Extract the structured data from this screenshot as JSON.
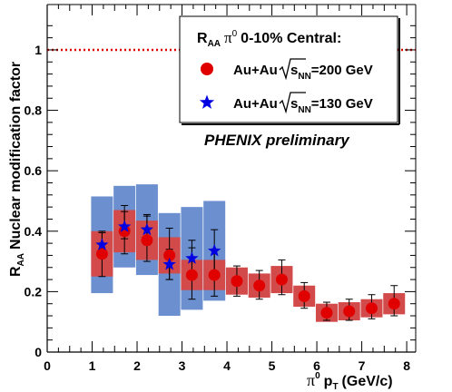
{
  "chart_data": {
    "type": "scatter",
    "xlabel_pre": "π",
    "xlabel_sup": "0",
    "xlabel_p": "p",
    "xlabel_sub": "T",
    "xlabel_post": "(GeV/c)",
    "ylabel_pre": "R",
    "ylabel_sub": "AA",
    "ylabel_post": "Nuclear modification factor",
    "annotation": "PHENIX preliminary",
    "xlim": [
      0,
      8.2
    ],
    "ylim": [
      0,
      1.15
    ],
    "x_ticks": [
      0,
      1,
      2,
      3,
      4,
      5,
      6,
      7,
      8
    ],
    "y_ticks": [
      0,
      0.2,
      0.4,
      0.6,
      0.8,
      1
    ],
    "reference_line": 1,
    "colors": {
      "s200": "#e00000",
      "s200_band": "#d24a4a",
      "s130": "#0000e0",
      "s130_band": "#6b8fcf",
      "reference": "#e00000"
    },
    "legend": {
      "title_pre": "R",
      "title_sub": "AA",
      "title_pi": "π",
      "title_sup": "0",
      "title_post": "0-10% Central:",
      "placement": "top-right"
    },
    "series": [
      {
        "name_pre": "Au+Au",
        "name_s": "s",
        "name_sub": "NN",
        "name_post": "=200 GeV",
        "marker": "circle",
        "x": [
          1.22,
          1.72,
          2.22,
          2.72,
          3.22,
          3.72,
          4.22,
          4.72,
          5.22,
          5.72,
          6.22,
          6.72,
          7.22,
          7.72
        ],
        "y": [
          0.325,
          0.4,
          0.37,
          0.32,
          0.255,
          0.255,
          0.235,
          0.22,
          0.24,
          0.185,
          0.13,
          0.135,
          0.145,
          0.16
        ],
        "err_lo": [
          0.075,
          0.075,
          0.07,
          0.08,
          0.08,
          0.07,
          0.05,
          0.045,
          0.05,
          0.04,
          0.025,
          0.03,
          0.035,
          0.04
        ],
        "err_hi": [
          0.075,
          0.085,
          0.08,
          0.09,
          0.09,
          0.08,
          0.05,
          0.05,
          0.065,
          0.045,
          0.035,
          0.04,
          0.045,
          0.06
        ],
        "band": [
          0.075,
          0.07,
          0.065,
          0.06,
          0.05,
          0.05,
          0.045,
          0.04,
          0.045,
          0.035,
          0.03,
          0.03,
          0.03,
          0.035
        ]
      },
      {
        "name_pre": "Au+Au",
        "name_s": "s",
        "name_sub": "NN",
        "name_post": "=130 GeV",
        "marker": "star",
        "x": [
          1.22,
          1.72,
          2.22,
          2.72,
          3.22,
          3.72
        ],
        "y": [
          0.355,
          0.415,
          0.405,
          0.29,
          0.31,
          0.335
        ],
        "err_lo": [
          0.04,
          0.04,
          0.05,
          0.05,
          0.06,
          0.07
        ],
        "err_hi": [
          0.04,
          0.05,
          0.05,
          0.05,
          0.06,
          0.07
        ],
        "band": [
          0.16,
          0.135,
          0.15,
          0.17,
          0.17,
          0.165
        ]
      }
    ]
  }
}
